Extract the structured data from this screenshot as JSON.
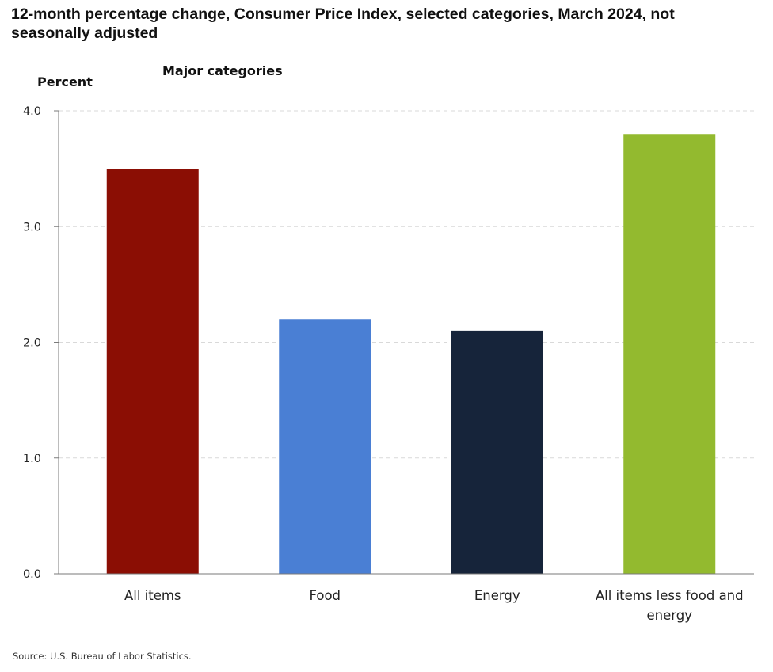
{
  "chart_data": {
    "type": "bar",
    "title": "12-month percentage change, Consumer Price Index, selected categories, March 2024, not seasonally adjusted",
    "subtitle": "Major categories",
    "ylabel": "Percent",
    "xlabel": "",
    "categories": [
      "All items",
      "Food",
      "Energy",
      "All items less food and energy"
    ],
    "category_lines": [
      [
        "All items"
      ],
      [
        "Food"
      ],
      [
        "Energy"
      ],
      [
        "All items less food and",
        "energy"
      ]
    ],
    "values": [
      3.5,
      2.2,
      2.1,
      3.8
    ],
    "colors": [
      "#8b0e04",
      "#4a7fd4",
      "#16243a",
      "#93ba2f"
    ],
    "ylim": [
      0,
      4
    ],
    "yticks": [
      0,
      1,
      2,
      3,
      4
    ],
    "ytick_labels": [
      "0.0",
      "1.0",
      "2.0",
      "3.0",
      "4.0"
    ],
    "grid": true,
    "legend": "none"
  },
  "source": "Source: U.S. Bureau of Labor Statistics."
}
